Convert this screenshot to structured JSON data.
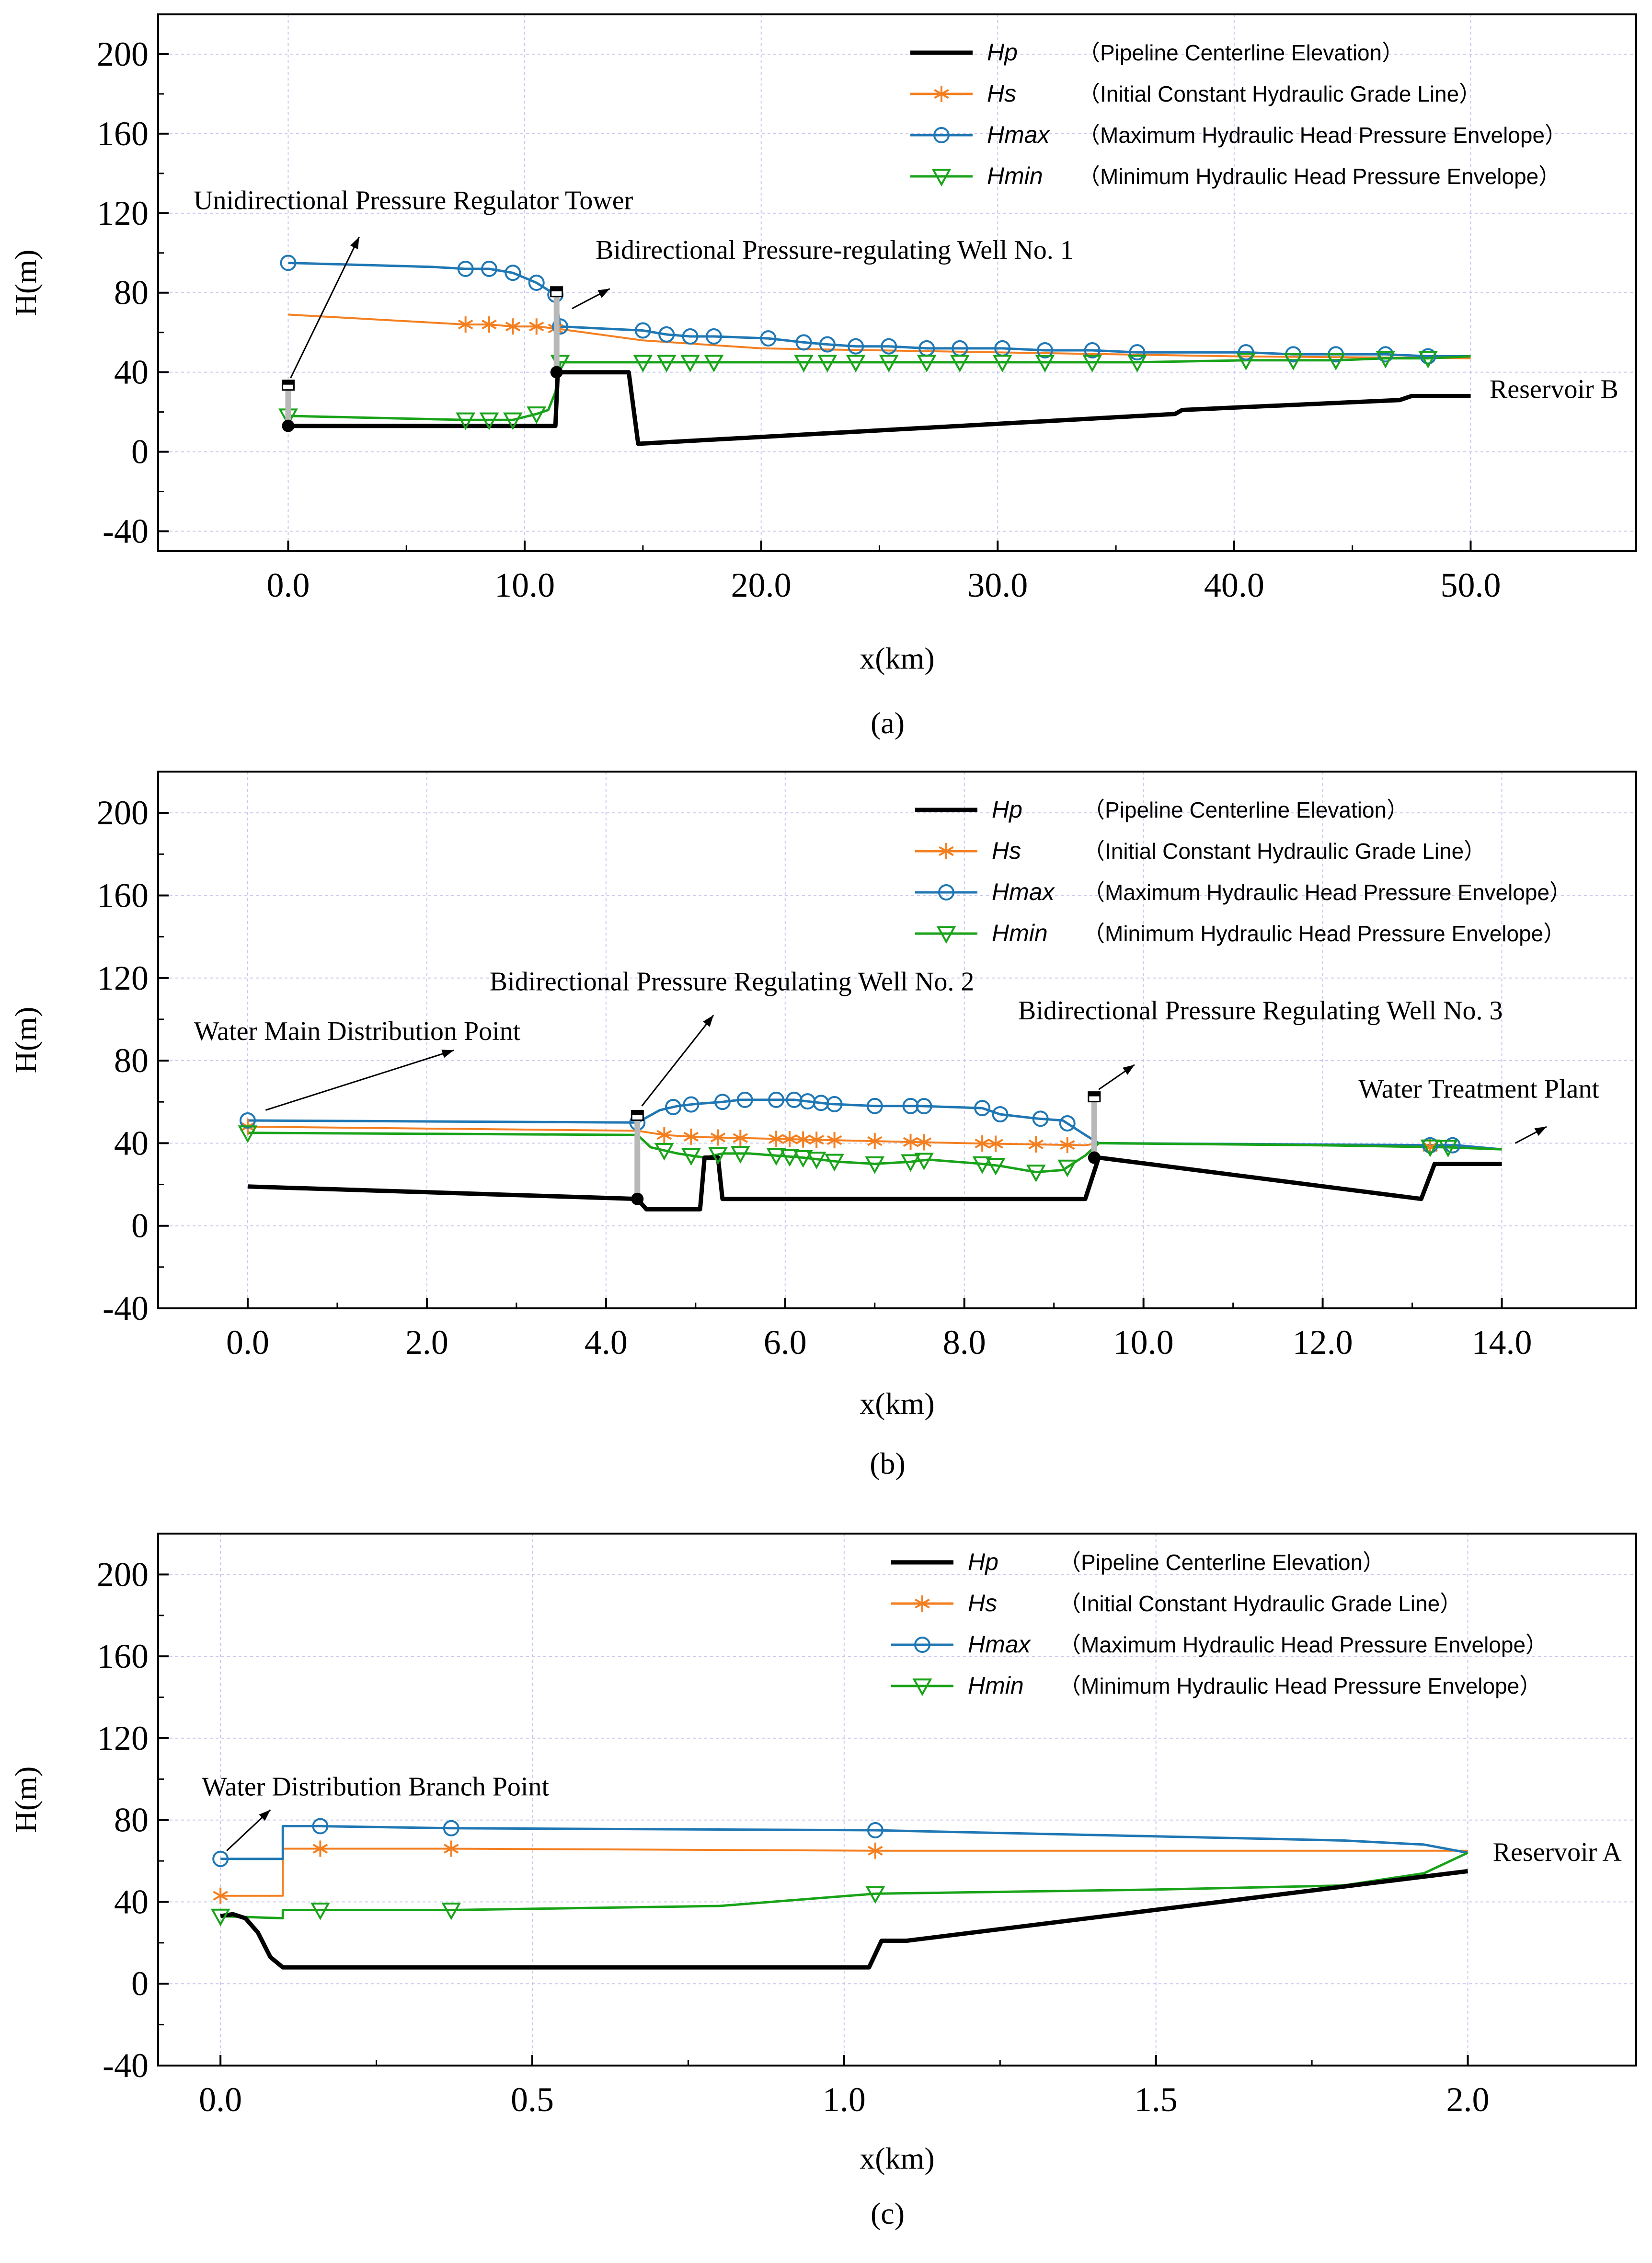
{
  "chart_data": [
    {
      "type": "line",
      "panel_label": "(a)",
      "xlabel": "x(km)",
      "ylabel": "H(m)",
      "xlim": [
        -5.5,
        57.0
      ],
      "ylim": [
        -50,
        220
      ],
      "xticks": [
        0,
        10,
        20,
        30,
        40,
        50
      ],
      "xtick_labels": [
        "0.0",
        "10.0",
        "20.0",
        "30.0",
        "40.0",
        "50.0"
      ],
      "yticks": [
        -40,
        0,
        40,
        80,
        120,
        160,
        200
      ],
      "ytick_labels": [
        "-40",
        "0",
        "40",
        "80",
        "120",
        "160",
        "200"
      ],
      "grid": true,
      "legend_position": "top-right",
      "legend": [
        {
          "key": "Hp",
          "label": "（Pipeline Centerline Elevation）",
          "color": "#000000",
          "marker": "none"
        },
        {
          "key": "Hs",
          "label": "（Initial Constant Hydraulic Grade Line）",
          "color": "#f47f20",
          "marker": "asterisk"
        },
        {
          "key": "Hmax",
          "label": "（Maximum Hydraulic Head Pressure Envelope）",
          "color": "#1f77b4",
          "marker": "circle"
        },
        {
          "key": "Hmin",
          "label": "（Minimum Hydraulic Head Pressure Envelope）",
          "color": "#19a319",
          "marker": "triangle-down"
        }
      ],
      "series": [
        {
          "name": "Hp",
          "x": [
            0,
            11.3,
            11.4,
            14.4,
            14.8,
            37.5,
            37.8,
            47.0,
            47.5,
            50.0
          ],
          "values": [
            13,
            13,
            40,
            40,
            4,
            19,
            21,
            26,
            28,
            28
          ]
        },
        {
          "name": "Hs",
          "x": [
            0,
            7.5,
            8.5,
            9.5,
            10.5,
            11.3,
            15,
            20,
            30,
            40,
            50
          ],
          "values": [
            69,
            64,
            64,
            63,
            63,
            62,
            56,
            52,
            50,
            48,
            47
          ]
        },
        {
          "name": "Hmax",
          "x": [
            0,
            6,
            7.5,
            8.5,
            9.5,
            10.5,
            11.3,
            11.5,
            15,
            16,
            17,
            18,
            20.3,
            21.8,
            22.8,
            24,
            25.4,
            27,
            28.4,
            30.2,
            32,
            34,
            35.9,
            40.5,
            42.5,
            44.3,
            46.4,
            48.2,
            50
          ],
          "values": [
            95,
            93,
            92,
            92,
            90,
            85,
            79,
            63,
            61,
            59,
            58,
            58,
            57,
            55,
            54,
            53,
            53,
            52,
            52,
            52,
            51,
            51,
            50,
            50,
            49,
            49,
            49,
            48,
            48
          ]
        },
        {
          "name": "Hmin",
          "x": [
            0,
            7.5,
            8.5,
            9.5,
            10.5,
            11.0,
            11.3,
            11.5,
            15,
            16,
            17,
            18,
            21.8,
            22.8,
            24,
            25.4,
            27,
            28.4,
            30.2,
            32,
            34,
            35.9,
            40.5,
            42.5,
            44.3,
            46.4,
            48.2,
            50
          ],
          "values": [
            18,
            16,
            16,
            16,
            19,
            21,
            30,
            45,
            45,
            45,
            45,
            45,
            45,
            45,
            45,
            45,
            45,
            45,
            45,
            45,
            45,
            45,
            46,
            46,
            46,
            47,
            47,
            48
          ]
        }
      ],
      "markers": {
        "Hs": [
          7.5,
          8.5,
          9.5,
          10.5,
          11.3
        ],
        "Hmax": [
          0,
          7.5,
          8.5,
          9.5,
          10.5,
          11.3,
          11.5,
          15,
          16,
          17,
          18,
          20.3,
          21.8,
          22.8,
          24,
          25.4,
          27,
          28.4,
          30.2,
          32,
          34,
          35.9,
          40.5,
          42.5,
          44.3,
          46.4,
          48.2
        ],
        "Hmin": [
          0,
          7.5,
          8.5,
          9.5,
          10.5,
          11.5,
          15,
          16,
          17,
          18,
          21.8,
          22.8,
          24,
          25.4,
          27,
          28.4,
          30.2,
          32,
          34,
          35.9,
          40.5,
          42.5,
          44.3,
          46.4,
          48.2
        ]
      },
      "towers": [
        {
          "x": 0.0,
          "bottom": 13,
          "top": 33
        },
        {
          "x": 11.35,
          "bottom": 40,
          "top": 80
        }
      ],
      "annotations": [
        {
          "text": "Unidirectional Pressure Regulator Tower",
          "x": -4.0,
          "y": 122,
          "arrow_from": [
            0.1,
            37
          ],
          "arrow_to": [
            3.0,
            108
          ]
        },
        {
          "text": "Bidirectional Pressure-regulating Well No. 1",
          "x": 13.0,
          "y": 97,
          "arrow_from": [
            12.0,
            72
          ],
          "arrow_to": [
            13.6,
            82
          ]
        },
        {
          "text": "Reservoir B",
          "x": 50.8,
          "y": 27
        }
      ]
    },
    {
      "type": "line",
      "panel_label": "(b)",
      "xlabel": "x(km)",
      "ylabel": "H(m)",
      "xlim": [
        -1.0,
        15.5
      ],
      "ylim": [
        -40,
        220
      ],
      "xticks": [
        0,
        2,
        4,
        6,
        8,
        10,
        12,
        14
      ],
      "xtick_labels": [
        "0.0",
        "2.0",
        "4.0",
        "6.0",
        "8.0",
        "10.0",
        "12.0",
        "14.0"
      ],
      "yticks": [
        -40,
        0,
        40,
        80,
        120,
        160,
        200
      ],
      "ytick_labels": [
        "-40",
        "0",
        "40",
        "80",
        "120",
        "160",
        "200"
      ],
      "grid": true,
      "legend_position": "top-right",
      "legend": [
        {
          "key": "Hp",
          "label": "（Pipeline Centerline Elevation）",
          "color": "#000000",
          "marker": "none"
        },
        {
          "key": "Hs",
          "label": "（Initial Constant Hydraulic Grade Line）",
          "color": "#f47f20",
          "marker": "asterisk"
        },
        {
          "key": "Hmax",
          "label": "（Maximum Hydraulic Head Pressure Envelope）",
          "color": "#1f77b4",
          "marker": "circle"
        },
        {
          "key": "Hmin",
          "label": "（Minimum Hydraulic Head Pressure Envelope）",
          "color": "#19a319",
          "marker": "triangle-down"
        }
      ],
      "series": [
        {
          "name": "Hp",
          "x": [
            0,
            4.35,
            4.45,
            5.05,
            5.1,
            5.25,
            5.3,
            9.35,
            9.5,
            13.1,
            13.25,
            14.0
          ],
          "values": [
            19,
            13,
            8,
            8,
            33,
            33,
            13,
            13,
            33,
            13,
            30,
            30
          ]
        },
        {
          "name": "Hs",
          "x": [
            0,
            4.35,
            4.65,
            5.0,
            6.0,
            7.0,
            8.0,
            9.35,
            9.5,
            12.0,
            13.4,
            14.0
          ],
          "values": [
            48,
            46,
            44,
            43,
            42,
            41,
            40,
            39,
            40,
            39,
            38,
            37
          ]
        },
        {
          "name": "Hmax",
          "x": [
            0,
            4.35,
            4.6,
            4.8,
            5.0,
            5.3,
            5.5,
            5.9,
            6.1,
            6.3,
            6.5,
            7.0,
            7.5,
            8.2,
            8.4,
            8.8,
            9.1,
            9.35,
            9.5,
            13.2,
            13.5,
            14.0
          ],
          "values": [
            51,
            50,
            56,
            58,
            59,
            60,
            61,
            61,
            61,
            60,
            59,
            58,
            58,
            57,
            54,
            52,
            51,
            44,
            40,
            39,
            39,
            37
          ]
        },
        {
          "name": "Hmin",
          "x": [
            0,
            4.35,
            4.5,
            4.8,
            5.1,
            5.3,
            5.6,
            5.9,
            6.2,
            6.4,
            6.6,
            7.0,
            7.4,
            7.6,
            8.2,
            8.4,
            8.8,
            9.1,
            9.35,
            9.5,
            12.0,
            13.4,
            14.0
          ],
          "values": [
            45,
            44,
            38,
            35,
            33,
            35,
            35,
            34,
            33,
            32,
            31,
            30,
            31,
            32,
            30,
            29,
            26,
            27,
            34,
            40,
            39,
            38,
            37
          ]
        }
      ],
      "markers": {
        "Hs": [
          0.0,
          4.65,
          4.95,
          5.25,
          5.5,
          5.9,
          6.05,
          6.2,
          6.35,
          6.55,
          7.0,
          7.4,
          7.55,
          8.2,
          8.35,
          8.8,
          9.15,
          13.2
        ],
        "Hmax": [
          0.0,
          4.35,
          4.75,
          4.95,
          5.3,
          5.55,
          5.9,
          6.1,
          6.25,
          6.4,
          6.55,
          7.0,
          7.4,
          7.55,
          8.2,
          8.4,
          8.85,
          9.15,
          13.2,
          13.45
        ],
        "Hmin": [
          0.0,
          4.65,
          4.95,
          5.25,
          5.5,
          5.9,
          6.05,
          6.2,
          6.35,
          6.55,
          7.0,
          7.4,
          7.55,
          8.2,
          8.35,
          8.8,
          9.15,
          13.2,
          13.4
        ]
      },
      "towers": [
        {
          "x": 4.35,
          "bottom": 13,
          "top": 53
        },
        {
          "x": 9.45,
          "bottom": 33,
          "top": 62
        }
      ],
      "annotations": [
        {
          "text": "Water Main Distribution Point",
          "x": -0.6,
          "y": 90,
          "arrow_from": [
            0.2,
            56
          ],
          "arrow_to": [
            2.3,
            85
          ]
        },
        {
          "text": "Bidirectional Pressure Regulating Well No. 2",
          "x": 2.7,
          "y": 114,
          "arrow_from": [
            4.4,
            58
          ],
          "arrow_to": [
            5.2,
            102
          ]
        },
        {
          "text": "Bidirectional Pressure Regulating Well No. 3",
          "x": 8.6,
          "y": 100,
          "arrow_from": [
            9.5,
            66
          ],
          "arrow_to": [
            9.9,
            78
          ]
        },
        {
          "text": "Water Treatment Plant",
          "x": 12.4,
          "y": 62,
          "arrow_from": [
            14.15,
            40
          ],
          "arrow_to": [
            14.5,
            48
          ]
        }
      ]
    },
    {
      "type": "line",
      "panel_label": "(c)",
      "xlabel": "x(km)",
      "ylabel": "H(m)",
      "xlim": [
        -0.1,
        2.27
      ],
      "ylim": [
        -40,
        220
      ],
      "xticks": [
        0,
        0.5,
        1.0,
        1.5,
        2.0
      ],
      "xtick_labels": [
        "0.0",
        "0.5",
        "1.0",
        "1.5",
        "2.0"
      ],
      "yticks": [
        -40,
        0,
        40,
        80,
        120,
        160,
        200
      ],
      "ytick_labels": [
        "-40",
        "0",
        "40",
        "80",
        "120",
        "160",
        "200"
      ],
      "grid": true,
      "legend_position": "top-right",
      "legend": [
        {
          "key": "Hp",
          "label": "（Pipeline Centerline Elevation）",
          "color": "#000000",
          "marker": "none"
        },
        {
          "key": "Hs",
          "label": "（Initial Constant Hydraulic Grade Line）",
          "color": "#f47f20",
          "marker": "asterisk"
        },
        {
          "key": "Hmax",
          "label": "（Maximum Hydraulic Head Pressure Envelope）",
          "color": "#1f77b4",
          "marker": "circle"
        },
        {
          "key": "Hmin",
          "label": "（Minimum Hydraulic Head Pressure Envelope）",
          "color": "#19a319",
          "marker": "triangle-down"
        }
      ],
      "series": [
        {
          "name": "Hp",
          "x": [
            0,
            0.02,
            0.04,
            0.06,
            0.08,
            0.1,
            1.04,
            1.06,
            1.1,
            2.0
          ],
          "values": [
            33,
            34,
            32,
            25,
            13,
            8,
            8,
            21,
            21,
            55
          ]
        },
        {
          "name": "Hs",
          "x": [
            0,
            0.1,
            0.1,
            0.16,
            0.37,
            1.05,
            1.5,
            2.0
          ],
          "values": [
            43,
            43,
            66,
            66,
            66,
            65,
            65,
            65
          ]
        },
        {
          "name": "Hmax",
          "x": [
            0,
            0.1,
            0.1,
            0.16,
            0.37,
            1.05,
            1.5,
            1.8,
            1.93,
            2.0
          ],
          "values": [
            61,
            61,
            77,
            77,
            76,
            75,
            72,
            70,
            68,
            64
          ]
        },
        {
          "name": "Hmin",
          "x": [
            0,
            0.1,
            0.1,
            0.16,
            0.37,
            0.8,
            1.05,
            1.5,
            1.8,
            1.93,
            2.0
          ],
          "values": [
            33,
            32,
            36,
            36,
            36,
            38,
            44,
            46,
            48,
            54,
            64
          ]
        }
      ],
      "markers": {
        "Hs": [
          0.0,
          0.16,
          0.37,
          1.05
        ],
        "Hmax": [
          0.0,
          0.16,
          0.37,
          1.05
        ],
        "Hmin": [
          0.0,
          0.16,
          0.37,
          1.05
        ]
      },
      "towers": [],
      "annotations": [
        {
          "text": "Water Distribution Branch Point",
          "x": -0.03,
          "y": 92,
          "arrow_from": [
            0.01,
            65
          ],
          "arrow_to": [
            0.08,
            85
          ]
        },
        {
          "text": "Reservoir A",
          "x": 2.04,
          "y": 60
        }
      ]
    }
  ]
}
